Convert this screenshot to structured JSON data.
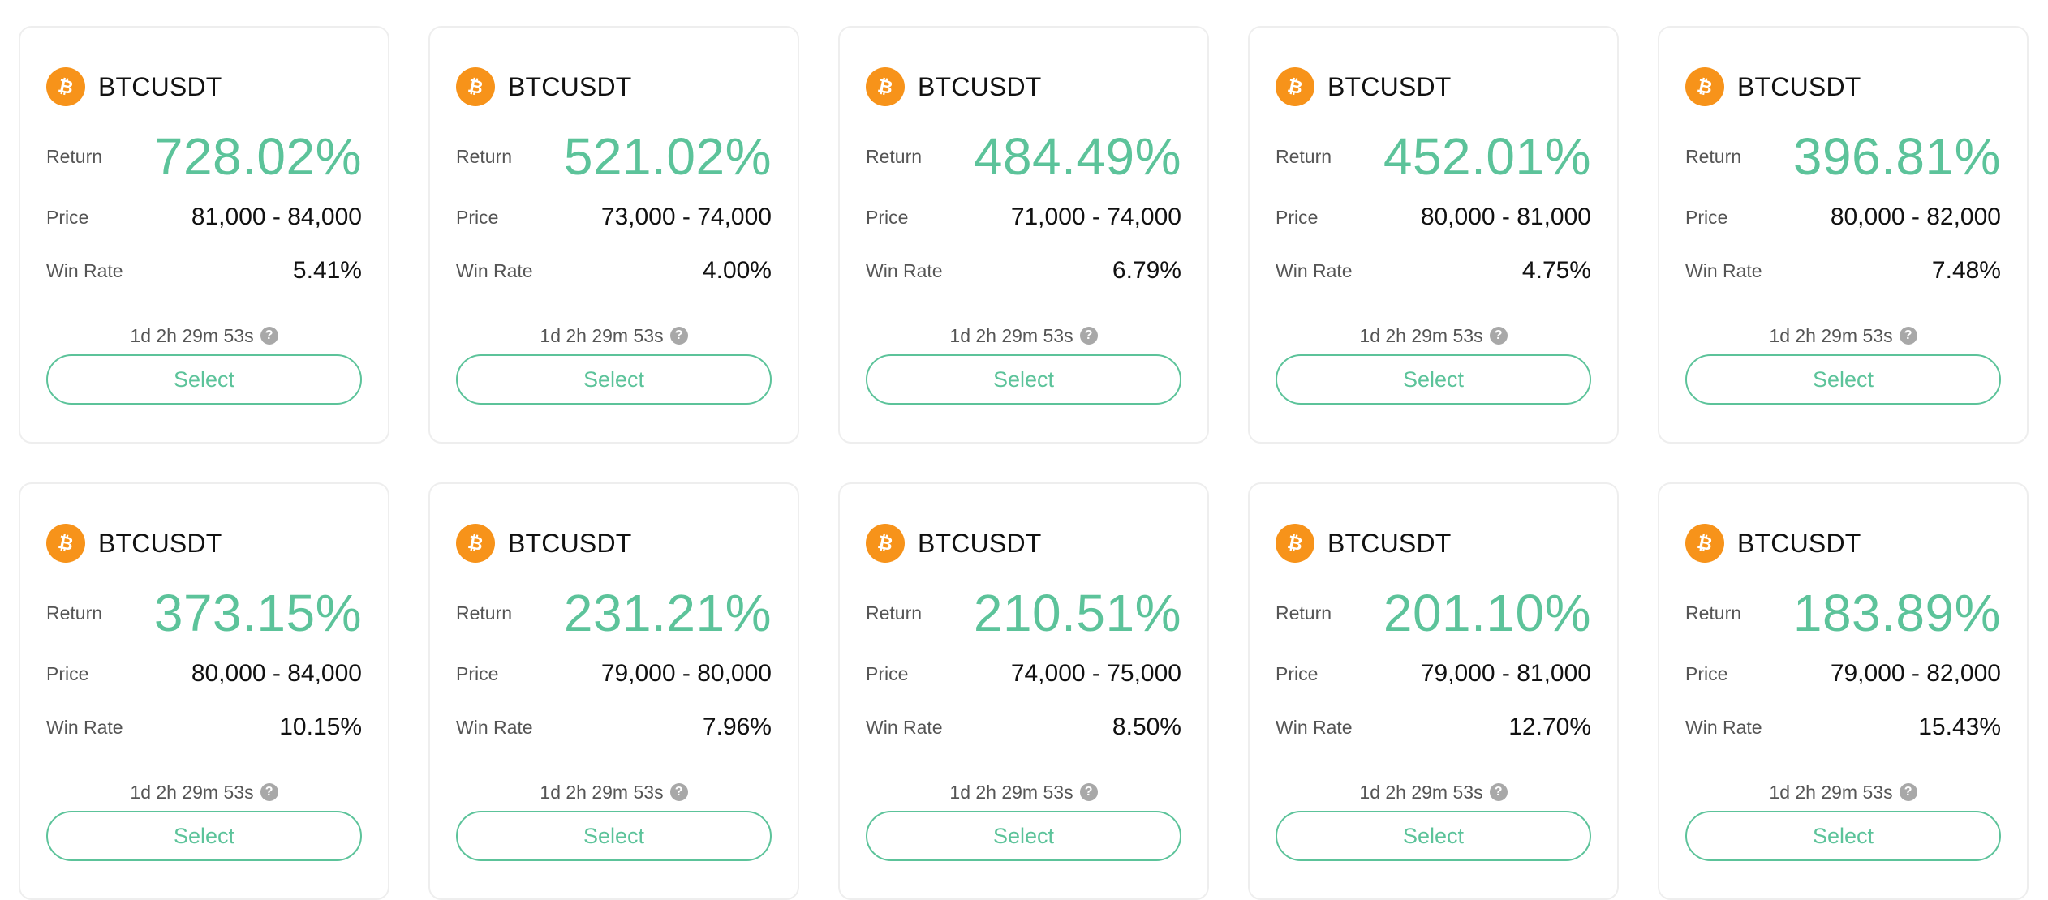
{
  "colors": {
    "accent": "#5cc39a",
    "coin": "#f7931a",
    "label": "#555555",
    "border": "#eeeeee"
  },
  "labels": {
    "return": "Return",
    "price": "Price",
    "win_rate": "Win Rate",
    "select": "Select",
    "help_glyph": "?"
  },
  "coin_icon": "bitcoin-icon",
  "cards": [
    {
      "symbol": "BTCUSDT",
      "return": "728.02%",
      "price": "81,000 - 84,000",
      "win_rate": "5.41%",
      "timer": "1d 2h 29m 53s"
    },
    {
      "symbol": "BTCUSDT",
      "return": "521.02%",
      "price": "73,000 - 74,000",
      "win_rate": "4.00%",
      "timer": "1d 2h 29m 53s"
    },
    {
      "symbol": "BTCUSDT",
      "return": "484.49%",
      "price": "71,000 - 74,000",
      "win_rate": "6.79%",
      "timer": "1d 2h 29m 53s"
    },
    {
      "symbol": "BTCUSDT",
      "return": "452.01%",
      "price": "80,000 - 81,000",
      "win_rate": "4.75%",
      "timer": "1d 2h 29m 53s"
    },
    {
      "symbol": "BTCUSDT",
      "return": "396.81%",
      "price": "80,000 - 82,000",
      "win_rate": "7.48%",
      "timer": "1d 2h 29m 53s"
    },
    {
      "symbol": "BTCUSDT",
      "return": "373.15%",
      "price": "80,000 - 84,000",
      "win_rate": "10.15%",
      "timer": "1d 2h 29m 53s"
    },
    {
      "symbol": "BTCUSDT",
      "return": "231.21%",
      "price": "79,000 - 80,000",
      "win_rate": "7.96%",
      "timer": "1d 2h 29m 53s"
    },
    {
      "symbol": "BTCUSDT",
      "return": "210.51%",
      "price": "74,000 - 75,000",
      "win_rate": "8.50%",
      "timer": "1d 2h 29m 53s"
    },
    {
      "symbol": "BTCUSDT",
      "return": "201.10%",
      "price": "79,000 - 81,000",
      "win_rate": "12.70%",
      "timer": "1d 2h 29m 53s"
    },
    {
      "symbol": "BTCUSDT",
      "return": "183.89%",
      "price": "79,000 - 82,000",
      "win_rate": "15.43%",
      "timer": "1d 2h 29m 53s"
    }
  ]
}
